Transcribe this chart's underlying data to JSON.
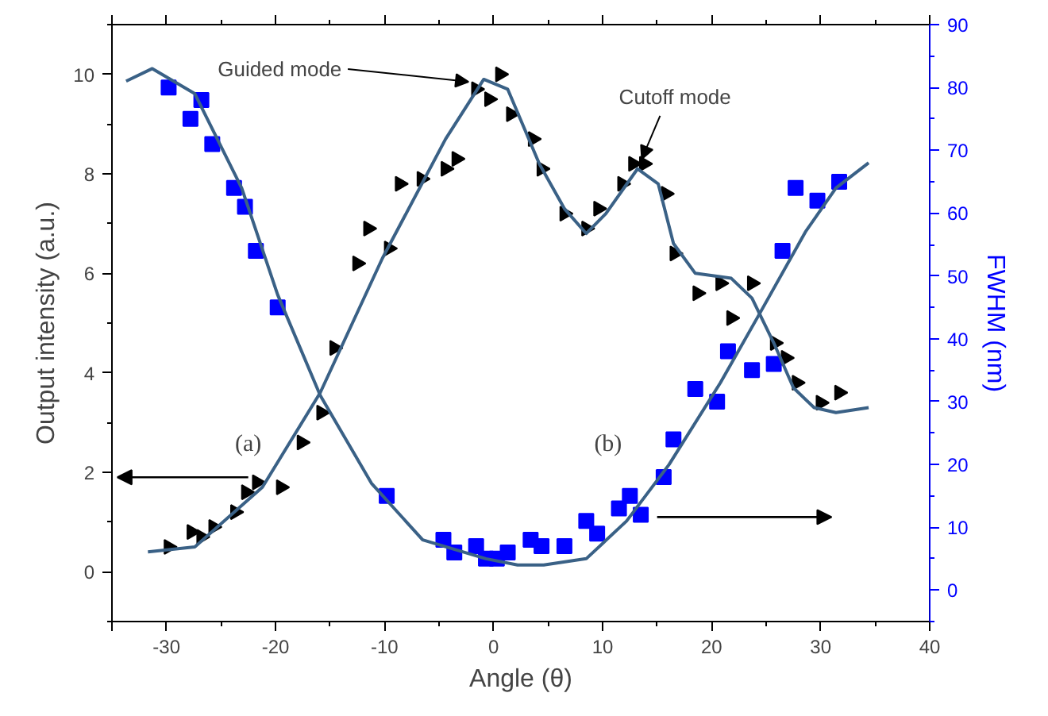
{
  "chart_data": {
    "type": "scatter",
    "xlabel": "Angle (θ)",
    "ylabel": "Output intensity (a.u.)",
    "y2label": "FWHM (nm)",
    "xlim": [
      -35,
      40
    ],
    "xticks": [
      {
        "value": -35,
        "label": null
      },
      -30,
      -20,
      -10,
      0,
      10,
      20,
      30,
      40
    ],
    "ylim": [
      -1,
      11
    ],
    "yticks": [
      0,
      2,
      4,
      6,
      8,
      10
    ],
    "y2lim": [
      -5,
      90
    ],
    "y2ticks": [
      0,
      10,
      20,
      30,
      40,
      50,
      60,
      70,
      80,
      90
    ],
    "grid": false,
    "series": [
      {
        "marker": "triangle",
        "color": "#000000",
        "x": [
          -29.8,
          -27.7,
          -26.8,
          -25.7,
          -23.7,
          -22.7,
          -21.7,
          -19.5,
          -17.6,
          -15.8,
          -14.6,
          -12.5,
          -11.5,
          -9.6,
          -8.6,
          -6.6,
          -4.4,
          -3.4,
          -1.6,
          -0.4,
          0.6,
          1.6,
          3.6,
          4.4,
          6.5,
          8.5,
          9.6,
          11.8,
          12.8,
          13.8,
          15.8,
          16.6,
          18.7,
          20.8,
          21.8,
          23.7,
          25.8,
          26.8,
          27.8,
          30,
          31.7
        ],
        "values": [
          0.5,
          0.8,
          0.7,
          0.9,
          1.2,
          1.6,
          1.8,
          1.7,
          2.6,
          3.2,
          4.5,
          6.2,
          6.9,
          6.5,
          7.8,
          7.9,
          8.1,
          8.3,
          9.7,
          9.5,
          10.0,
          9.2,
          8.7,
          8.1,
          7.2,
          6.9,
          7.3,
          7.8,
          8.2,
          8.2,
          7.6,
          6.4,
          5.6,
          5.8,
          5.1,
          5.8,
          4.6,
          4.3,
          3.8,
          3.4,
          3.6
        ]
      },
      {
        "marker": "square",
        "color": "#0000ff",
        "axis": "y2",
        "x": [
          -29.8,
          -27.8,
          -26.8,
          -25.8,
          -23.8,
          -22.8,
          -21.8,
          -19.8,
          -9.8,
          -4.6,
          -3.6,
          -1.6,
          -0.7,
          0.3,
          1.3,
          3.4,
          4.4,
          6.5,
          8.5,
          9.5,
          11.5,
          12.5,
          13.5,
          15.6,
          16.5,
          18.5,
          20.5,
          21.5,
          23.7,
          25.7,
          26.5,
          27.7,
          29.7,
          31.7
        ],
        "values": [
          80,
          75,
          78,
          71,
          64,
          61,
          54,
          45,
          15,
          8,
          6,
          7,
          5,
          5,
          6,
          8,
          7,
          7,
          11,
          9,
          13,
          15,
          12,
          18,
          24,
          32,
          30,
          38,
          35,
          36,
          54,
          64,
          62,
          65
        ]
      },
      {
        "type": "line",
        "marker": "none",
        "color": "#3a6186",
        "x": [
          -31.7,
          -27.4,
          -21.2,
          -15.9,
          -10.2,
          -4.4,
          -0.9,
          1.3,
          4.2,
          6.5,
          8.5,
          10.3,
          13.2,
          15.1,
          16.5,
          18.5,
          21.8,
          23.7,
          25.7,
          27.5,
          29.4,
          31.4,
          34.4
        ],
        "values": [
          0.4,
          0.5,
          1.7,
          3.6,
          6.3,
          8.7,
          9.9,
          9.7,
          8.2,
          7.3,
          6.8,
          7.2,
          8.1,
          7.8,
          6.6,
          6.0,
          5.9,
          5.5,
          4.6,
          3.7,
          3.3,
          3.2,
          3.3
        ]
      },
      {
        "type": "line",
        "marker": "none",
        "color": "#3a6186",
        "axis": "y2",
        "x": [
          -33.7,
          -31.3,
          -27.4,
          -23.1,
          -19.8,
          -15.9,
          -11.2,
          -6.5,
          -0.7,
          2.2,
          4.6,
          8.5,
          12.2,
          16.1,
          20.8,
          24.4,
          28.6,
          31.4,
          34.4
        ],
        "values": [
          81,
          83,
          79,
          64,
          47,
          31,
          17,
          8,
          5,
          4,
          4,
          5,
          11,
          20,
          33,
          44,
          57,
          64,
          68
        ]
      }
    ],
    "annotations": [
      {
        "text": "Guided mode",
        "x": -2,
        "y": 9.85
      },
      {
        "text": "Cutoff mode",
        "x": 13,
        "y": 8.2
      },
      "(a)",
      "(b)"
    ]
  }
}
